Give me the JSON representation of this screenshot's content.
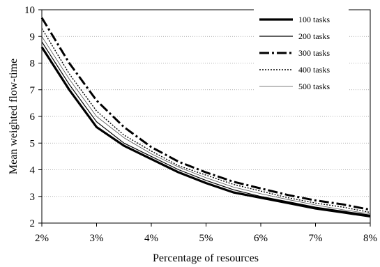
{
  "chart_data": {
    "type": "line",
    "xlabel": "Percentage of resources",
    "ylabel": "Mean weighted flow-time",
    "xlim": [
      2,
      8
    ],
    "ylim": [
      2,
      10
    ],
    "x_ticks": [
      2,
      3,
      4,
      5,
      6,
      7,
      8
    ],
    "x_tick_labels": [
      "2%",
      "3%",
      "4%",
      "5%",
      "6%",
      "7%",
      "8%"
    ],
    "y_ticks": [
      2,
      3,
      4,
      5,
      6,
      7,
      8,
      9,
      10
    ],
    "y_tick_labels": [
      "2",
      "3",
      "4",
      "5",
      "6",
      "7",
      "8",
      "9",
      "10"
    ],
    "grid": "horizontal dotted",
    "legend_position": "top-right",
    "x": [
      2.0,
      2.5,
      3.0,
      3.5,
      4.0,
      4.5,
      5.0,
      5.5,
      6.0,
      6.5,
      7.0,
      7.5,
      8.0
    ],
    "series": [
      {
        "name": "100 tasks",
        "style": "thick-solid",
        "color": "#000000",
        "values": [
          8.6,
          7.0,
          5.6,
          4.9,
          4.4,
          3.9,
          3.5,
          3.15,
          2.95,
          2.75,
          2.55,
          2.4,
          2.25
        ]
      },
      {
        "name": "200 tasks",
        "style": "solid",
        "color": "#000000",
        "values": [
          8.8,
          7.2,
          5.8,
          5.0,
          4.5,
          4.0,
          3.6,
          3.25,
          3.0,
          2.8,
          2.6,
          2.45,
          2.3
        ]
      },
      {
        "name": "300 tasks",
        "style": "dash-dot",
        "color": "#000000",
        "values": [
          9.7,
          8.0,
          6.6,
          5.6,
          4.85,
          4.3,
          3.9,
          3.55,
          3.3,
          3.05,
          2.85,
          2.7,
          2.5
        ]
      },
      {
        "name": "400 tasks",
        "style": "dotted",
        "color": "#000000",
        "values": [
          9.3,
          7.6,
          6.2,
          5.3,
          4.7,
          4.15,
          3.8,
          3.45,
          3.2,
          2.95,
          2.75,
          2.6,
          2.4
        ]
      },
      {
        "name": "500 tasks",
        "style": "thin-solid",
        "color": "#555555",
        "values": [
          9.0,
          7.4,
          6.0,
          5.2,
          4.6,
          4.1,
          3.7,
          3.35,
          3.1,
          2.88,
          2.68,
          2.5,
          2.35
        ]
      }
    ]
  }
}
